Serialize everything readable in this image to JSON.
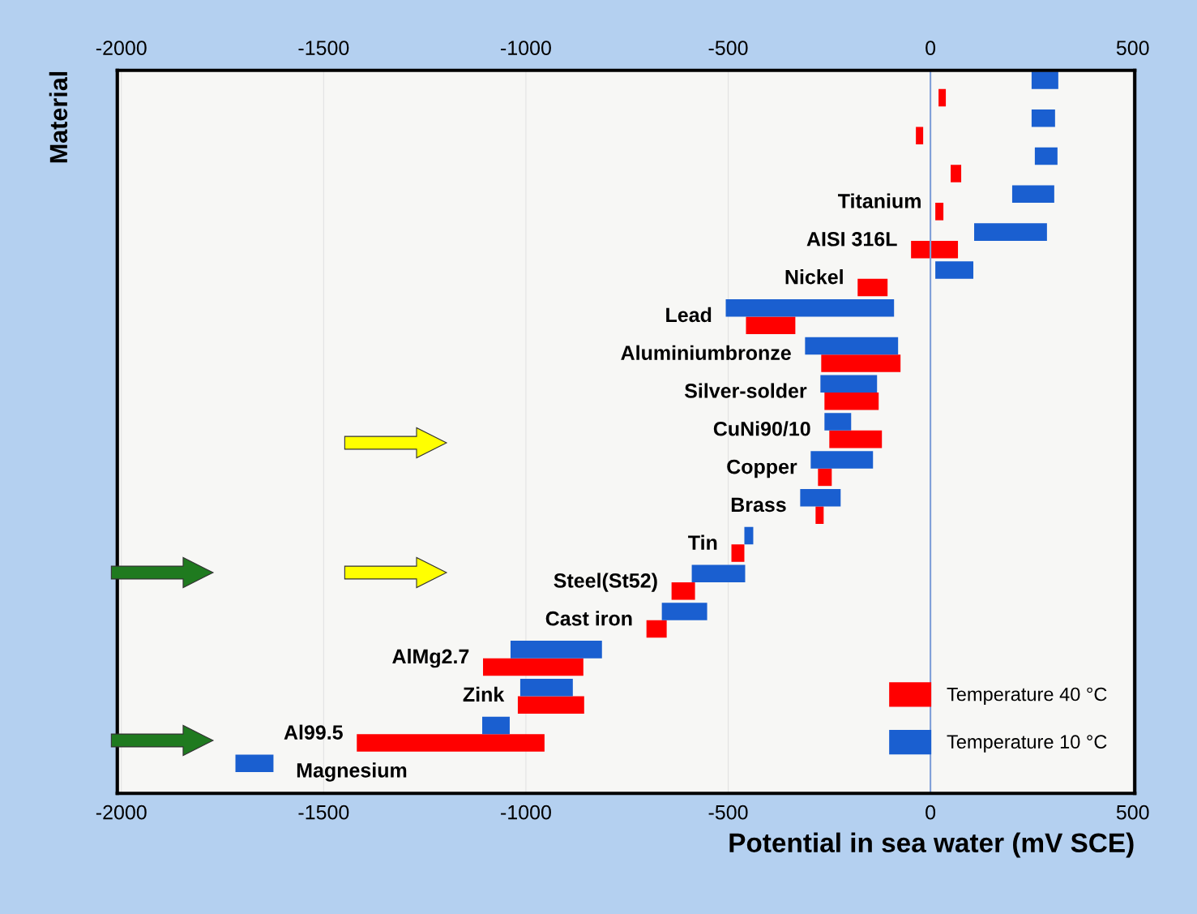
{
  "chart_data": {
    "type": "bar",
    "orientation": "horizontal",
    "xlabel": "Potential in sea water (mV SCE)",
    "ylabel": "Material",
    "categories": [
      null,
      null,
      null,
      "Titanium",
      "AISI 316L",
      "Nickel",
      "Lead",
      "Aluminiumbronze",
      "Silver-solder",
      "CuNi90/10",
      "Copper",
      "Brass",
      "Tin",
      "Steel(St52)",
      "Cast iron",
      "AlMg2.7",
      "Zink",
      "Al99.5",
      "Magnesium"
    ],
    "series": [
      {
        "name": "Temperature 40 °C",
        "color": "#ff0000",
        "base": [
          20,
          -36,
          50,
          12,
          -48,
          -180,
          -456,
          -270,
          -262,
          -250,
          -278,
          -284,
          -492,
          -640,
          -702,
          -1106,
          -1020,
          -1418,
          null
        ],
        "values": [
          18,
          18,
          26,
          20,
          116,
          74,
          122,
          196,
          134,
          130,
          34,
          20,
          32,
          58,
          50,
          248,
          164,
          464,
          null
        ]
      },
      {
        "name": "Temperature 10 °C",
        "color": "#1a5fd0",
        "base": [
          250,
          250,
          258,
          202,
          108,
          12,
          -506,
          -310,
          -272,
          -262,
          -296,
          -322,
          -460,
          -590,
          -664,
          -1038,
          -1014,
          -1108,
          -1718
        ],
        "values": [
          66,
          58,
          56,
          104,
          180,
          94,
          416,
          230,
          140,
          66,
          154,
          100,
          22,
          132,
          112,
          226,
          130,
          68,
          94
        ]
      }
    ],
    "xlim": [
      -2010,
      505
    ],
    "xticks": [
      -2000,
      -1500,
      -1000,
      -500,
      0,
      500
    ],
    "x2lim": [
      -2010,
      505
    ],
    "x2ticks": [
      -2000,
      -1500,
      -1000,
      -500,
      0,
      500
    ],
    "ref_lines": [
      {
        "axis": "x",
        "value": 0,
        "color": "#7f9fd8"
      }
    ],
    "grid": "x",
    "legend": "bottom right"
  }
}
